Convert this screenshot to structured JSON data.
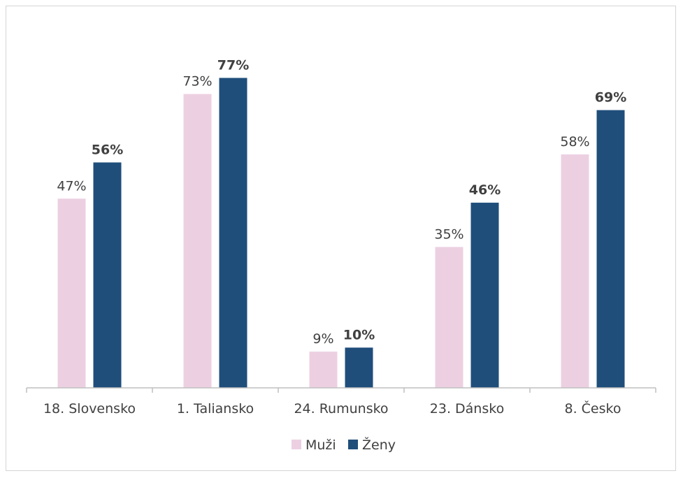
{
  "chart_data": {
    "type": "bar",
    "title": "",
    "xlabel": "",
    "ylabel": "",
    "ylim": [
      0,
      80
    ],
    "grid": false,
    "legend_position": "bottom",
    "categories": [
      "18. Slovensko",
      "1. Taliansko",
      "24. Rumunsko",
      "23. Dánsko",
      "8. Česko"
    ],
    "series": [
      {
        "name": "Muži",
        "color": "#ecd0e2",
        "values": [
          47,
          73,
          9,
          35,
          58
        ],
        "labels": [
          "47%",
          "73%",
          "9%",
          "35%",
          "58%"
        ]
      },
      {
        "name": "Ženy",
        "color": "#1f4e7b",
        "values": [
          56,
          77,
          10,
          46,
          69
        ],
        "labels": [
          "56%",
          "77%",
          "10%",
          "46%",
          "69%"
        ]
      }
    ]
  }
}
